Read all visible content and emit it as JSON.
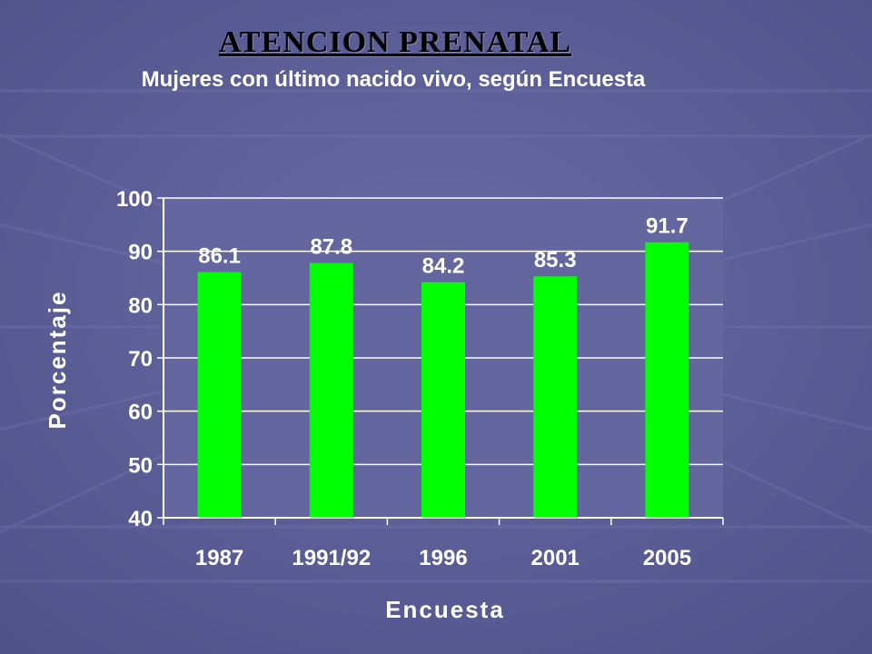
{
  "chart_data": {
    "type": "bar",
    "title": "ATENCION PRENATAL",
    "subtitle": "Mujeres con último nacido vivo, según Encuesta",
    "xlabel": "Encuesta",
    "ylabel": "Porcentaje",
    "categories": [
      "1987",
      "1991/92",
      "1996",
      "2001",
      "2005"
    ],
    "values": [
      86.1,
      87.8,
      84.2,
      85.3,
      91.7
    ],
    "data_labels": [
      "86.1",
      "87.8",
      "84.2",
      "85.3",
      "91.7"
    ],
    "ylim": [
      40,
      100
    ],
    "yticks": [
      "40",
      "50",
      "60",
      "70",
      "80",
      "90",
      "100"
    ],
    "grid": true,
    "legend": "none",
    "bar_color": "#00ff00",
    "background_color": "#5a5c94",
    "plot_color": "#6466a0"
  }
}
